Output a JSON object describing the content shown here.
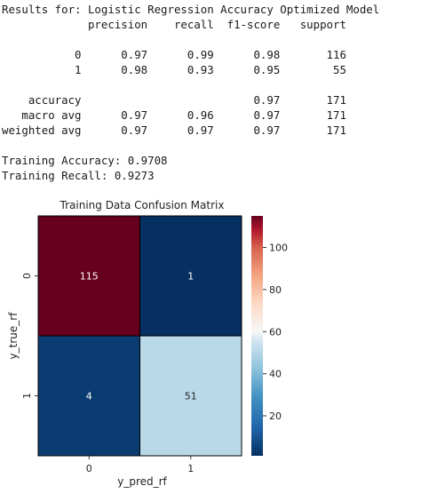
{
  "report": {
    "title": "Results for: Logistic Regression Accuracy Optimized Model",
    "headers": [
      "precision",
      "recall",
      "f1-score",
      "support"
    ],
    "rows": [
      {
        "label": "0",
        "precision": "0.97",
        "recall": "0.99",
        "f1": "0.98",
        "support": "116"
      },
      {
        "label": "1",
        "precision": "0.98",
        "recall": "0.93",
        "f1": "0.95",
        "support": "55"
      },
      {
        "label": "",
        "precision": "",
        "recall": "",
        "f1": "",
        "support": ""
      },
      {
        "label": "accuracy",
        "precision": "",
        "recall": "",
        "f1": "0.97",
        "support": "171"
      },
      {
        "label": "macro avg",
        "precision": "0.97",
        "recall": "0.96",
        "f1": "0.97",
        "support": "171"
      },
      {
        "label": "weighted avg",
        "precision": "0.97",
        "recall": "0.97",
        "f1": "0.97",
        "support": "171"
      }
    ],
    "training_accuracy": "Training Accuracy: 0.9708",
    "training_recall": "Training Recall: 0.9273"
  },
  "chart_data": {
    "type": "heatmap",
    "title": "Training Data Confusion Matrix",
    "xlabel": "y_pred_rf",
    "ylabel": "y_true_rf",
    "x_categories": [
      "0",
      "1"
    ],
    "y_categories": [
      "0",
      "1"
    ],
    "values": [
      [
        115,
        1
      ],
      [
        4,
        51
      ]
    ],
    "colormap": "RdBu_r",
    "colorbar_range": [
      1,
      115
    ],
    "colorbar_ticks": [
      20,
      40,
      60,
      80,
      100
    ],
    "colors": {
      "low": "#053061",
      "mid": "#f7f7f7",
      "high": "#67001f"
    }
  }
}
